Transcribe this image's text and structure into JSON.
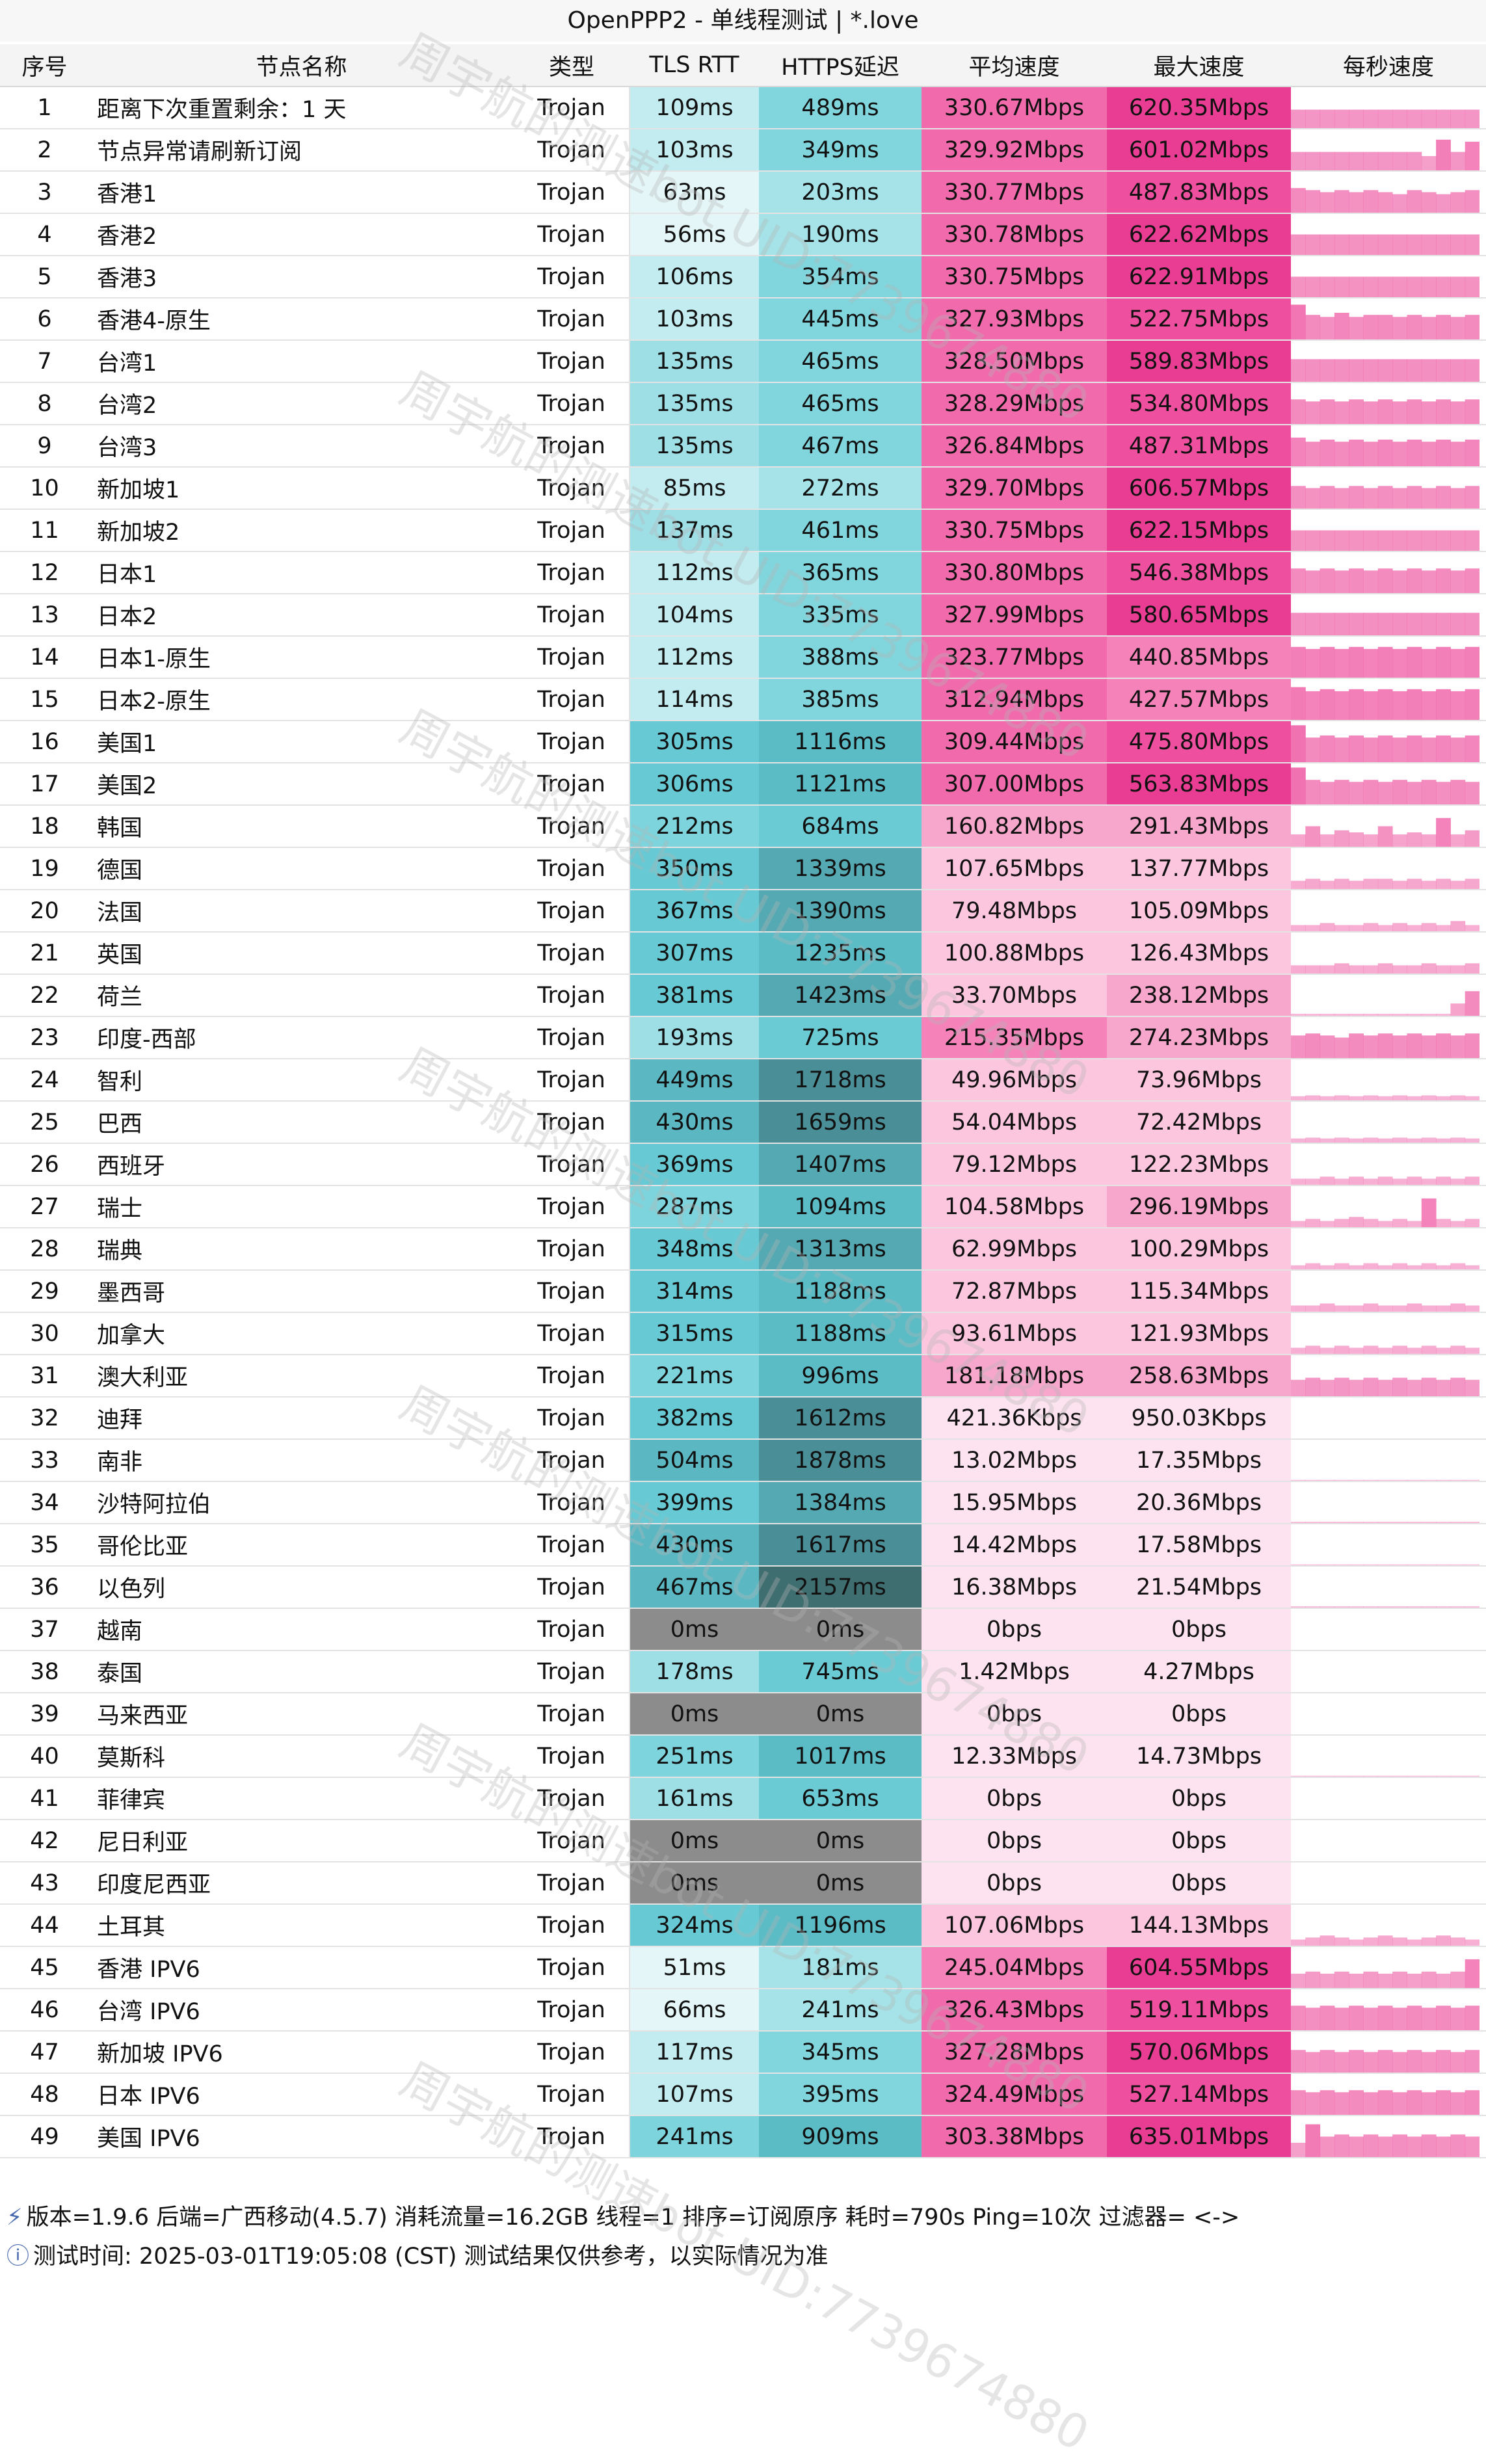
{
  "title": "OpenPPP2 - 单线程测试 | *.love",
  "headers": [
    "序号",
    "节点名称",
    "类型",
    "TLS RTT",
    "HTTPS延迟",
    "平均速度",
    "最大速度",
    "每秒速度"
  ],
  "rows": [
    {
      "idx": "1",
      "name": "距离下次重置剩余：1 天",
      "type": "Trojan",
      "tls": "109ms",
      "https": "489ms",
      "avg": "330.67Mbps",
      "max": "620.35Mbps",
      "spark": [
        0.45,
        0.45,
        0.45,
        0.45,
        0.45,
        0.45,
        0.45,
        0.45,
        0.45,
        0.45,
        0.45,
        0.45,
        0.45
      ]
    },
    {
      "idx": "2",
      "name": "节点异常请刷新订阅",
      "type": "Trojan",
      "tls": "103ms",
      "https": "349ms",
      "avg": "329.92Mbps",
      "max": "601.02Mbps",
      "spark": [
        0.45,
        0.45,
        0.45,
        0.45,
        0.45,
        0.45,
        0.45,
        0.45,
        0.45,
        0.35,
        0.75,
        0.45,
        0.7
      ]
    },
    {
      "idx": "3",
      "name": "香港1",
      "type": "Trojan",
      "tls": "63ms",
      "https": "203ms",
      "avg": "330.77Mbps",
      "max": "487.83Mbps",
      "spark": [
        0.6,
        0.55,
        0.5,
        0.55,
        0.5,
        0.55,
        0.5,
        0.45,
        0.55,
        0.5,
        0.45,
        0.5,
        0.55
      ]
    },
    {
      "idx": "4",
      "name": "香港2",
      "type": "Trojan",
      "tls": "56ms",
      "https": "190ms",
      "avg": "330.78Mbps",
      "max": "622.62Mbps",
      "spark": [
        0.5,
        0.5,
        0.5,
        0.5,
        0.5,
        0.5,
        0.5,
        0.5,
        0.5,
        0.5,
        0.5,
        0.5,
        0.5
      ]
    },
    {
      "idx": "5",
      "name": "香港3",
      "type": "Trojan",
      "tls": "106ms",
      "https": "354ms",
      "avg": "330.75Mbps",
      "max": "622.91Mbps",
      "spark": [
        0.5,
        0.5,
        0.5,
        0.5,
        0.5,
        0.5,
        0.5,
        0.5,
        0.5,
        0.5,
        0.5,
        0.5,
        0.5
      ]
    },
    {
      "idx": "6",
      "name": "香港4-原生",
      "type": "Trojan",
      "tls": "103ms",
      "https": "445ms",
      "avg": "327.93Mbps",
      "max": "522.75Mbps",
      "spark": [
        0.85,
        0.6,
        0.55,
        0.65,
        0.55,
        0.6,
        0.6,
        0.55,
        0.6,
        0.55,
        0.6,
        0.55,
        0.6
      ]
    },
    {
      "idx": "7",
      "name": "台湾1",
      "type": "Trojan",
      "tls": "135ms",
      "https": "465ms",
      "avg": "328.50Mbps",
      "max": "589.83Mbps",
      "spark": [
        0.55,
        0.55,
        0.55,
        0.55,
        0.55,
        0.55,
        0.55,
        0.55,
        0.55,
        0.55,
        0.55,
        0.55,
        0.55
      ]
    },
    {
      "idx": "8",
      "name": "台湾2",
      "type": "Trojan",
      "tls": "135ms",
      "https": "465ms",
      "avg": "328.29Mbps",
      "max": "534.80Mbps",
      "spark": [
        0.6,
        0.55,
        0.6,
        0.55,
        0.6,
        0.55,
        0.6,
        0.55,
        0.6,
        0.55,
        0.6,
        0.55,
        0.6
      ]
    },
    {
      "idx": "9",
      "name": "台湾3",
      "type": "Trojan",
      "tls": "135ms",
      "https": "467ms",
      "avg": "326.84Mbps",
      "max": "487.31Mbps",
      "spark": [
        0.7,
        0.6,
        0.65,
        0.6,
        0.65,
        0.6,
        0.65,
        0.6,
        0.65,
        0.6,
        0.65,
        0.6,
        0.65
      ]
    },
    {
      "idx": "10",
      "name": "新加坡1",
      "type": "Trojan",
      "tls": "85ms",
      "https": "272ms",
      "avg": "329.70Mbps",
      "max": "606.57Mbps",
      "spark": [
        0.55,
        0.5,
        0.55,
        0.5,
        0.55,
        0.5,
        0.55,
        0.5,
        0.55,
        0.5,
        0.55,
        0.5,
        0.55
      ]
    },
    {
      "idx": "11",
      "name": "新加坡2",
      "type": "Trojan",
      "tls": "137ms",
      "https": "461ms",
      "avg": "330.75Mbps",
      "max": "622.15Mbps",
      "spark": [
        0.5,
        0.5,
        0.5,
        0.5,
        0.5,
        0.5,
        0.5,
        0.5,
        0.5,
        0.5,
        0.5,
        0.5,
        0.5
      ]
    },
    {
      "idx": "12",
      "name": "日本1",
      "type": "Trojan",
      "tls": "112ms",
      "https": "365ms",
      "avg": "330.80Mbps",
      "max": "546.38Mbps",
      "spark": [
        0.6,
        0.55,
        0.6,
        0.55,
        0.6,
        0.55,
        0.6,
        0.55,
        0.6,
        0.55,
        0.6,
        0.55,
        0.6
      ]
    },
    {
      "idx": "13",
      "name": "日本2",
      "type": "Trojan",
      "tls": "104ms",
      "https": "335ms",
      "avg": "327.99Mbps",
      "max": "580.65Mbps",
      "spark": [
        0.55,
        0.55,
        0.55,
        0.55,
        0.55,
        0.55,
        0.55,
        0.55,
        0.55,
        0.55,
        0.55,
        0.55,
        0.55
      ]
    },
    {
      "idx": "14",
      "name": "日本1-原生",
      "type": "Trojan",
      "tls": "112ms",
      "https": "388ms",
      "avg": "323.77Mbps",
      "max": "440.85Mbps",
      "spark": [
        0.75,
        0.7,
        0.75,
        0.7,
        0.75,
        0.7,
        0.75,
        0.7,
        0.75,
        0.7,
        0.75,
        0.7,
        0.75
      ]
    },
    {
      "idx": "15",
      "name": "日本2-原生",
      "type": "Trojan",
      "tls": "114ms",
      "https": "385ms",
      "avg": "312.94Mbps",
      "max": "427.57Mbps",
      "spark": [
        0.8,
        0.7,
        0.75,
        0.7,
        0.75,
        0.7,
        0.75,
        0.7,
        0.75,
        0.7,
        0.75,
        0.7,
        0.75
      ]
    },
    {
      "idx": "16",
      "name": "美国1",
      "type": "Trojan",
      "tls": "305ms",
      "https": "1116ms",
      "avg": "309.44Mbps",
      "max": "475.80Mbps",
      "spark": [
        0.9,
        0.6,
        0.65,
        0.6,
        0.65,
        0.6,
        0.65,
        0.6,
        0.65,
        0.6,
        0.65,
        0.6,
        0.65
      ]
    },
    {
      "idx": "17",
      "name": "美国2",
      "type": "Trojan",
      "tls": "306ms",
      "https": "1121ms",
      "avg": "307.00Mbps",
      "max": "563.83Mbps",
      "spark": [
        0.9,
        0.6,
        0.55,
        0.6,
        0.55,
        0.6,
        0.55,
        0.6,
        0.55,
        0.6,
        0.55,
        0.6,
        0.55
      ]
    },
    {
      "idx": "18",
      "name": "韩国",
      "type": "Trojan",
      "tls": "212ms",
      "https": "684ms",
      "avg": "160.82Mbps",
      "max": "291.43Mbps",
      "spark": [
        0.3,
        0.5,
        0.3,
        0.4,
        0.35,
        0.3,
        0.5,
        0.3,
        0.35,
        0.3,
        0.7,
        0.3,
        0.4
      ]
    },
    {
      "idx": "19",
      "name": "德国",
      "type": "Trojan",
      "tls": "350ms",
      "https": "1339ms",
      "avg": "107.65Mbps",
      "max": "137.77Mbps",
      "spark": [
        0.2,
        0.25,
        0.2,
        0.25,
        0.2,
        0.25,
        0.25,
        0.2,
        0.25,
        0.2,
        0.25,
        0.2,
        0.25
      ]
    },
    {
      "idx": "20",
      "name": "法国",
      "type": "Trojan",
      "tls": "367ms",
      "https": "1390ms",
      "avg": "79.48Mbps",
      "max": "105.09Mbps",
      "spark": [
        0.15,
        0.15,
        0.2,
        0.15,
        0.15,
        0.2,
        0.15,
        0.2,
        0.15,
        0.2,
        0.15,
        0.25,
        0.15
      ]
    },
    {
      "idx": "21",
      "name": "英国",
      "type": "Trojan",
      "tls": "307ms",
      "https": "1235ms",
      "avg": "100.88Mbps",
      "max": "126.43Mbps",
      "spark": [
        0.2,
        0.2,
        0.2,
        0.25,
        0.2,
        0.2,
        0.25,
        0.2,
        0.2,
        0.25,
        0.2,
        0.2,
        0.25
      ]
    },
    {
      "idx": "22",
      "name": "荷兰",
      "type": "Trojan",
      "tls": "381ms",
      "https": "1423ms",
      "avg": "33.70Mbps",
      "max": "238.12Mbps",
      "spark": [
        0.05,
        0.05,
        0.05,
        0.05,
        0.05,
        0.05,
        0.05,
        0.05,
        0.05,
        0.05,
        0.05,
        0.3,
        0.6
      ]
    },
    {
      "idx": "23",
      "name": "印度-西部",
      "type": "Trojan",
      "tls": "193ms",
      "https": "725ms",
      "avg": "215.35Mbps",
      "max": "274.23Mbps",
      "spark": [
        0.55,
        0.6,
        0.55,
        0.5,
        0.6,
        0.55,
        0.6,
        0.55,
        0.6,
        0.55,
        0.6,
        0.55,
        0.6
      ]
    },
    {
      "idx": "24",
      "name": "智利",
      "type": "Trojan",
      "tls": "449ms",
      "https": "1718ms",
      "avg": "49.96Mbps",
      "max": "73.96Mbps",
      "spark": [
        0.1,
        0.12,
        0.1,
        0.12,
        0.1,
        0.12,
        0.1,
        0.12,
        0.1,
        0.12,
        0.1,
        0.12,
        0.1
      ]
    },
    {
      "idx": "25",
      "name": "巴西",
      "type": "Trojan",
      "tls": "430ms",
      "https": "1659ms",
      "avg": "54.04Mbps",
      "max": "72.42Mbps",
      "spark": [
        0.1,
        0.12,
        0.1,
        0.12,
        0.1,
        0.12,
        0.1,
        0.12,
        0.1,
        0.12,
        0.1,
        0.12,
        0.1
      ]
    },
    {
      "idx": "26",
      "name": "西班牙",
      "type": "Trojan",
      "tls": "369ms",
      "https": "1407ms",
      "avg": "79.12Mbps",
      "max": "122.23Mbps",
      "spark": [
        0.15,
        0.15,
        0.2,
        0.15,
        0.2,
        0.15,
        0.2,
        0.15,
        0.2,
        0.15,
        0.2,
        0.15,
        0.2
      ]
    },
    {
      "idx": "27",
      "name": "瑞士",
      "type": "Trojan",
      "tls": "287ms",
      "https": "1094ms",
      "avg": "104.58Mbps",
      "max": "296.19Mbps",
      "spark": [
        0.15,
        0.2,
        0.15,
        0.2,
        0.25,
        0.2,
        0.15,
        0.2,
        0.15,
        0.7,
        0.2,
        0.15,
        0.2
      ]
    },
    {
      "idx": "28",
      "name": "瑞典",
      "type": "Trojan",
      "tls": "348ms",
      "https": "1313ms",
      "avg": "62.99Mbps",
      "max": "100.29Mbps",
      "spark": [
        0.1,
        0.15,
        0.1,
        0.15,
        0.1,
        0.15,
        0.1,
        0.15,
        0.1,
        0.15,
        0.1,
        0.15,
        0.1
      ]
    },
    {
      "idx": "29",
      "name": "墨西哥",
      "type": "Trojan",
      "tls": "314ms",
      "https": "1188ms",
      "avg": "72.87Mbps",
      "max": "115.34Mbps",
      "spark": [
        0.15,
        0.15,
        0.2,
        0.15,
        0.15,
        0.2,
        0.15,
        0.15,
        0.2,
        0.15,
        0.15,
        0.2,
        0.15
      ]
    },
    {
      "idx": "30",
      "name": "加拿大",
      "type": "Trojan",
      "tls": "315ms",
      "https": "1188ms",
      "avg": "93.61Mbps",
      "max": "121.93Mbps",
      "spark": [
        0.15,
        0.2,
        0.15,
        0.2,
        0.15,
        0.2,
        0.15,
        0.2,
        0.15,
        0.2,
        0.15,
        0.2,
        0.15
      ]
    },
    {
      "idx": "31",
      "name": "澳大利亚",
      "type": "Trojan",
      "tls": "221ms",
      "https": "996ms",
      "avg": "181.18Mbps",
      "max": "258.63Mbps",
      "spark": [
        0.4,
        0.45,
        0.4,
        0.45,
        0.4,
        0.45,
        0.4,
        0.45,
        0.4,
        0.45,
        0.4,
        0.45,
        0.4
      ]
    },
    {
      "idx": "32",
      "name": "迪拜",
      "type": "Trojan",
      "tls": "382ms",
      "https": "1612ms",
      "avg": "421.36Kbps",
      "max": "950.03Kbps",
      "spark": [
        0,
        0,
        0,
        0,
        0,
        0,
        0,
        0,
        0,
        0,
        0,
        0,
        0
      ]
    },
    {
      "idx": "33",
      "name": "南非",
      "type": "Trojan",
      "tls": "504ms",
      "https": "1878ms",
      "avg": "13.02Mbps",
      "max": "17.35Mbps",
      "spark": [
        0.02,
        0.02,
        0.02,
        0.02,
        0.02,
        0.02,
        0.02,
        0.02,
        0.02,
        0.02,
        0.02,
        0.02,
        0.02
      ]
    },
    {
      "idx": "34",
      "name": "沙特阿拉伯",
      "type": "Trojan",
      "tls": "399ms",
      "https": "1384ms",
      "avg": "15.95Mbps",
      "max": "20.36Mbps",
      "spark": [
        0.03,
        0.03,
        0.03,
        0.03,
        0.03,
        0.03,
        0.03,
        0.03,
        0.03,
        0.03,
        0.03,
        0.03,
        0.03
      ]
    },
    {
      "idx": "35",
      "name": "哥伦比亚",
      "type": "Trojan",
      "tls": "430ms",
      "https": "1617ms",
      "avg": "14.42Mbps",
      "max": "17.58Mbps",
      "spark": [
        0.02,
        0.02,
        0.02,
        0.02,
        0.02,
        0.02,
        0.02,
        0.02,
        0.02,
        0.02,
        0.02,
        0.02,
        0.02
      ]
    },
    {
      "idx": "36",
      "name": "以色列",
      "type": "Trojan",
      "tls": "467ms",
      "https": "2157ms",
      "avg": "16.38Mbps",
      "max": "21.54Mbps",
      "spark": [
        0.03,
        0.03,
        0.03,
        0.03,
        0.03,
        0.03,
        0.03,
        0.03,
        0.03,
        0.03,
        0.03,
        0.03,
        0.03
      ]
    },
    {
      "idx": "37",
      "name": "越南",
      "type": "Trojan",
      "tls": "0ms",
      "https": "0ms",
      "avg": "0bps",
      "max": "0bps",
      "spark": []
    },
    {
      "idx": "38",
      "name": "泰国",
      "type": "Trojan",
      "tls": "178ms",
      "https": "745ms",
      "avg": "1.42Mbps",
      "max": "4.27Mbps",
      "spark": []
    },
    {
      "idx": "39",
      "name": "马来西亚",
      "type": "Trojan",
      "tls": "0ms",
      "https": "0ms",
      "avg": "0bps",
      "max": "0bps",
      "spark": []
    },
    {
      "idx": "40",
      "name": "莫斯科",
      "type": "Trojan",
      "tls": "251ms",
      "https": "1017ms",
      "avg": "12.33Mbps",
      "max": "14.73Mbps",
      "spark": [
        0.02,
        0.02,
        0.02,
        0.02,
        0.02,
        0.02,
        0.02,
        0.02,
        0.02,
        0.02,
        0.02,
        0.02,
        0.02
      ]
    },
    {
      "idx": "41",
      "name": "菲律宾",
      "type": "Trojan",
      "tls": "161ms",
      "https": "653ms",
      "avg": "0bps",
      "max": "0bps",
      "spark": []
    },
    {
      "idx": "42",
      "name": "尼日利亚",
      "type": "Trojan",
      "tls": "0ms",
      "https": "0ms",
      "avg": "0bps",
      "max": "0bps",
      "spark": []
    },
    {
      "idx": "43",
      "name": "印度尼西亚",
      "type": "Trojan",
      "tls": "0ms",
      "https": "0ms",
      "avg": "0bps",
      "max": "0bps",
      "spark": []
    },
    {
      "idx": "44",
      "name": "土耳其",
      "type": "Trojan",
      "tls": "324ms",
      "https": "1196ms",
      "avg": "107.06Mbps",
      "max": "144.13Mbps",
      "spark": [
        0.15,
        0.2,
        0.25,
        0.2,
        0.15,
        0.2,
        0.25,
        0.2,
        0.15,
        0.2,
        0.25,
        0.2,
        0.15
      ]
    },
    {
      "idx": "45",
      "name": "香港 IPV6",
      "type": "Trojan",
      "tls": "51ms",
      "https": "181ms",
      "avg": "245.04Mbps",
      "max": "604.55Mbps",
      "spark": [
        0.35,
        0.4,
        0.35,
        0.4,
        0.35,
        0.4,
        0.35,
        0.4,
        0.35,
        0.4,
        0.35,
        0.4,
        0.7
      ]
    },
    {
      "idx": "46",
      "name": "台湾 IPV6",
      "type": "Trojan",
      "tls": "66ms",
      "https": "241ms",
      "avg": "326.43Mbps",
      "max": "519.11Mbps",
      "spark": [
        0.6,
        0.55,
        0.6,
        0.55,
        0.6,
        0.55,
        0.6,
        0.55,
        0.6,
        0.55,
        0.6,
        0.55,
        0.6
      ]
    },
    {
      "idx": "47",
      "name": "新加坡 IPV6",
      "type": "Trojan",
      "tls": "117ms",
      "https": "345ms",
      "avg": "327.28Mbps",
      "max": "570.06Mbps",
      "spark": [
        0.55,
        0.5,
        0.55,
        0.5,
        0.55,
        0.5,
        0.55,
        0.5,
        0.55,
        0.5,
        0.55,
        0.5,
        0.55
      ]
    },
    {
      "idx": "48",
      "name": "日本 IPV6",
      "type": "Trojan",
      "tls": "107ms",
      "https": "395ms",
      "avg": "324.49Mbps",
      "max": "527.14Mbps",
      "spark": [
        0.6,
        0.55,
        0.6,
        0.55,
        0.6,
        0.55,
        0.6,
        0.55,
        0.6,
        0.55,
        0.6,
        0.55,
        0.6
      ]
    },
    {
      "idx": "49",
      "name": "美国 IPV6",
      "type": "Trojan",
      "tls": "241ms",
      "https": "909ms",
      "avg": "303.38Mbps",
      "max": "635.01Mbps",
      "spark": [
        0.35,
        0.8,
        0.5,
        0.55,
        0.5,
        0.55,
        0.5,
        0.55,
        0.5,
        0.55,
        0.5,
        0.55,
        0.5
      ]
    }
  ],
  "footer": {
    "line1": "版本=1.9.6  后端=广西移动(4.5.7) 消耗流量=16.2GB  线程=1  排序=订阅原序  耗时=790s  Ping=10次  过滤器= <->",
    "line2": "测试时间: 2025-03-01T19:05:08 (CST)  测试结果仅供参考，以实际情况为准"
  },
  "watermark": "周宇航的测速bot UID:7739674880",
  "colors": {
    "tls_scale": [
      "#e4f6f8",
      "#c2ecf0",
      "#9edfe6",
      "#7dd4dc",
      "#66c9d3",
      "#5bb8c3"
    ],
    "https_scale": [
      "#a5e3e8",
      "#81d6dd",
      "#6bcbd4",
      "#5bbcc6",
      "#55a9b3",
      "#4a8f97",
      "#3f6e71"
    ],
    "zero": "#8c8c8c",
    "avg_scale": [
      "#fde3ef",
      "#fbc6de",
      "#f8a7cc",
      "#f583ba",
      "#f06aac"
    ],
    "max_scale": [
      "#fde3ef",
      "#fbc6de",
      "#f8a7cc",
      "#f583ba",
      "#ee4f9f",
      "#e93d93"
    ],
    "spark": "#f06aac"
  }
}
